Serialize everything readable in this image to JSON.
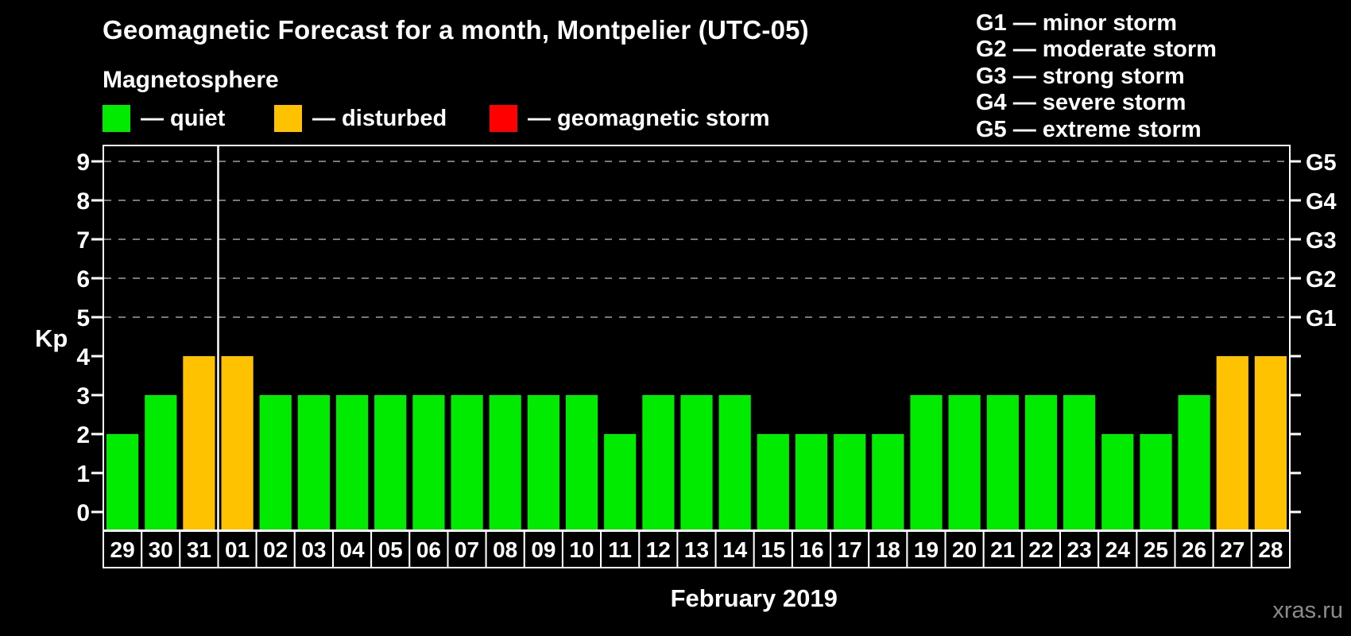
{
  "chart_data": {
    "type": "bar",
    "title": "Geomagnetic Forecast for a month, Montpelier (UTC-05)",
    "subtitle": "Magnetosphere",
    "ylabel": "Kp",
    "xlabel": "February 2019",
    "ylim": [
      -0.45,
      9.6
    ],
    "yticks": [
      0,
      1,
      2,
      3,
      4,
      5,
      6,
      7,
      8,
      9
    ],
    "grid_levels": [
      5,
      6,
      7,
      8,
      9
    ],
    "grid_on": true,
    "right_axis": [
      {
        "label": "G1",
        "value": 5
      },
      {
        "label": "G2",
        "value": 6
      },
      {
        "label": "G3",
        "value": 7
      },
      {
        "label": "G4",
        "value": 8
      },
      {
        "label": "G5",
        "value": 9
      }
    ],
    "legend": {
      "items": [
        {
          "label": "— quiet",
          "status": "quiet"
        },
        {
          "label": "— disturbed",
          "status": "disturbed"
        },
        {
          "label": "— geomagnetic storm",
          "status": "storm"
        }
      ]
    },
    "g_levels_legend": [
      "G1 — minor storm",
      "G2 — moderate storm",
      "G3 — strong storm",
      "G4 — severe storm",
      "G5 — extreme storm"
    ],
    "colors": {
      "quiet": "#00EB00",
      "disturbed": "#FFC200",
      "storm": "#FF0000"
    },
    "categories": [
      "29",
      "30",
      "31",
      "01",
      "02",
      "03",
      "04",
      "05",
      "06",
      "07",
      "08",
      "09",
      "10",
      "11",
      "12",
      "13",
      "14",
      "15",
      "16",
      "17",
      "18",
      "19",
      "20",
      "21",
      "22",
      "23",
      "24",
      "25",
      "26",
      "27",
      "28"
    ],
    "values": [
      2,
      3,
      4,
      4,
      3,
      3,
      3,
      3,
      3,
      3,
      3,
      3,
      3,
      2,
      3,
      3,
      3,
      2,
      2,
      2,
      2,
      3,
      3,
      3,
      3,
      3,
      2,
      2,
      3,
      4,
      4
    ],
    "statuses": [
      "quiet",
      "quiet",
      "disturbed",
      "disturbed",
      "quiet",
      "quiet",
      "quiet",
      "quiet",
      "quiet",
      "quiet",
      "quiet",
      "quiet",
      "quiet",
      "quiet",
      "quiet",
      "quiet",
      "quiet",
      "quiet",
      "quiet",
      "quiet",
      "quiet",
      "quiet",
      "quiet",
      "quiet",
      "quiet",
      "quiet",
      "quiet",
      "quiet",
      "quiet",
      "disturbed",
      "disturbed"
    ],
    "month_separator_after_index": 2
  },
  "footer": {
    "watermark": "xras.ru"
  }
}
